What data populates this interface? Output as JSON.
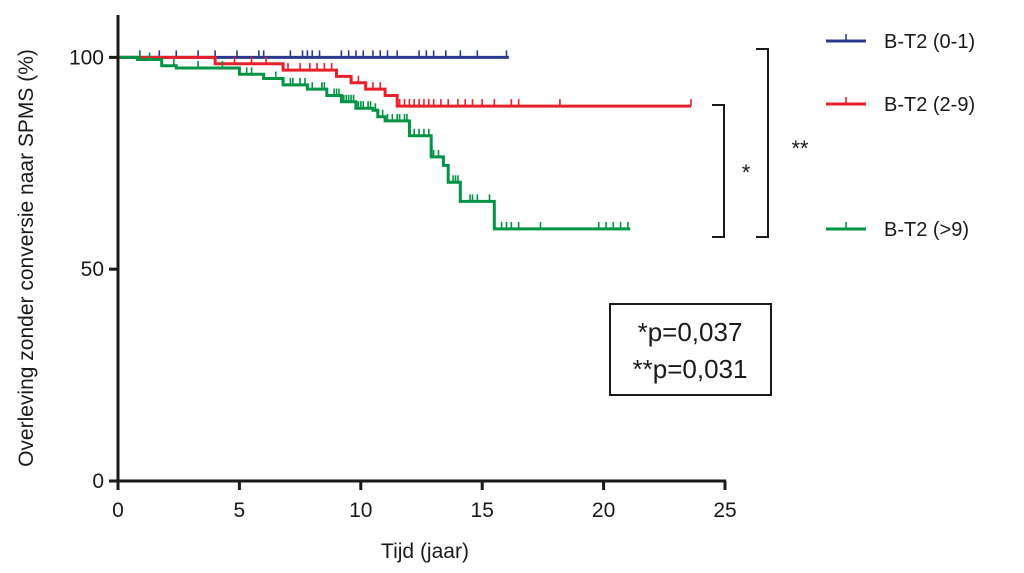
{
  "chart_data": {
    "type": "line",
    "xlabel": "Tijd (jaar)",
    "ylabel": "Overleving zonder conversie naar SPMS (%)",
    "xlim": [
      0,
      25
    ],
    "ylim": [
      0,
      110
    ],
    "xticks": [
      0,
      5,
      10,
      15,
      20,
      25
    ],
    "xtick_labels": [
      "0",
      "5",
      "10",
      "15",
      "20",
      "25"
    ],
    "yticks": [
      0,
      50,
      100
    ],
    "ytick_labels": [
      "0",
      "50",
      "100"
    ],
    "grid": false,
    "legend_position": "right",
    "series": [
      {
        "name": "B-T2 (0-1)",
        "color": "#2b3990",
        "steps": [
          [
            0,
            100
          ],
          [
            16.1,
            100
          ]
        ],
        "censor_x": [
          0.9,
          1.7,
          2.4,
          3.3,
          4.0,
          4.9,
          5.8,
          6.0,
          7.1,
          7.6,
          7.8,
          8.0,
          8.3,
          9.2,
          9.5,
          9.8,
          10.1,
          10.5,
          10.8,
          11.1,
          11.5,
          12.4,
          12.7,
          13.0,
          13.5,
          14.1,
          14.8,
          16.0
        ]
      },
      {
        "name": "B-T2 (2-9)",
        "color": "#e8202a",
        "steps": [
          [
            0,
            100
          ],
          [
            4.0,
            100
          ],
          [
            4.0,
            98.5
          ],
          [
            6.8,
            98.5
          ],
          [
            6.8,
            97
          ],
          [
            9.0,
            97
          ],
          [
            9.0,
            95.5
          ],
          [
            9.6,
            95.5
          ],
          [
            9.6,
            94
          ],
          [
            10.2,
            94
          ],
          [
            10.2,
            92.5
          ],
          [
            11.0,
            92.5
          ],
          [
            11.0,
            91
          ],
          [
            11.5,
            91
          ],
          [
            11.5,
            88.5
          ],
          [
            23.6,
            88.5
          ]
        ],
        "censor_x": [
          4.8,
          5.5,
          6.1,
          7.0,
          7.5,
          7.9,
          8.2,
          8.5,
          8.8,
          9.9,
          10.5,
          10.8,
          11.6,
          11.8,
          12.0,
          12.2,
          12.4,
          12.6,
          12.8,
          13.0,
          13.3,
          13.6,
          14.0,
          14.3,
          14.6,
          15.0,
          15.5,
          16.2,
          16.5,
          18.2,
          23.6
        ]
      },
      {
        "name": "B-T2 (>9)",
        "color": "#009444",
        "steps": [
          [
            0,
            100
          ],
          [
            0.8,
            100
          ],
          [
            0.8,
            99.5
          ],
          [
            1.8,
            99.5
          ],
          [
            1.8,
            98
          ],
          [
            2.4,
            98
          ],
          [
            2.4,
            97.5
          ],
          [
            5.0,
            97.5
          ],
          [
            5.0,
            96
          ],
          [
            6.0,
            96
          ],
          [
            6.0,
            95
          ],
          [
            6.8,
            95
          ],
          [
            6.8,
            93.5
          ],
          [
            7.8,
            93.5
          ],
          [
            7.8,
            92.5
          ],
          [
            8.6,
            92.5
          ],
          [
            8.6,
            91
          ],
          [
            9.2,
            91
          ],
          [
            9.2,
            89.5
          ],
          [
            9.8,
            89.5
          ],
          [
            9.8,
            88
          ],
          [
            10.5,
            88
          ],
          [
            10.5,
            87.5
          ],
          [
            10.7,
            87.5
          ],
          [
            10.7,
            86
          ],
          [
            11.0,
            86
          ],
          [
            11.0,
            85
          ],
          [
            12.0,
            85
          ],
          [
            12.0,
            81.5
          ],
          [
            12.9,
            81.5
          ],
          [
            12.9,
            76.5
          ],
          [
            13.4,
            76.5
          ],
          [
            13.4,
            74.5
          ],
          [
            13.6,
            74.5
          ],
          [
            13.6,
            70.5
          ],
          [
            14.1,
            70.5
          ],
          [
            14.1,
            66
          ],
          [
            15.5,
            66
          ],
          [
            15.5,
            59.5
          ],
          [
            21.1,
            59.5
          ]
        ],
        "censor_x": [
          0.9,
          1.3,
          2.3,
          3.3,
          4.3,
          5.3,
          5.5,
          6.5,
          6.8,
          7.1,
          7.2,
          7.5,
          7.7,
          8.0,
          8.4,
          8.5,
          8.9,
          9.0,
          9.1,
          9.3,
          9.4,
          9.5,
          9.6,
          9.7,
          9.9,
          10.0,
          10.1,
          10.3,
          10.4,
          10.6,
          10.9,
          11.1,
          11.3,
          11.5,
          11.6,
          11.8,
          11.9,
          12.2,
          12.4,
          12.6,
          12.8,
          13.0,
          13.2,
          13.6,
          13.8,
          13.9,
          14.0,
          14.5,
          14.6,
          14.8,
          15.3,
          15.5,
          15.8,
          16.0,
          16.2,
          16.5,
          17.4,
          19.8,
          20.1,
          20.4,
          20.7,
          21.0
        ]
      }
    ],
    "annotations": {
      "star_single": "*",
      "star_double": "**",
      "stats_lines": [
        "*p=0,037",
        "**p=0,031"
      ]
    }
  }
}
